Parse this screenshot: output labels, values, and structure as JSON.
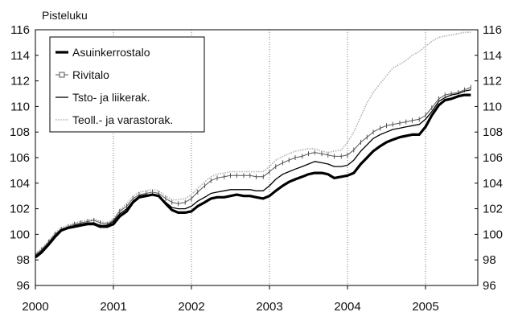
{
  "chart_data": {
    "type": "line",
    "ylabel": "Pisteluku",
    "xlabel": "",
    "ylim": [
      96,
      116
    ],
    "xlim": [
      2000.0,
      2005.67
    ],
    "yticks": [
      96,
      98,
      100,
      102,
      104,
      106,
      108,
      110,
      112,
      114,
      116
    ],
    "xticks": [
      "2000",
      "2001",
      "2002",
      "2003",
      "2004",
      "2005"
    ],
    "grid": "vertical-dotted",
    "legend_position": "top-left",
    "series": [
      {
        "name": "Asuinkerrostalo",
        "style": "thick",
        "color": "#000000",
        "points": [
          [
            2000.0,
            98.2
          ],
          [
            2000.08,
            98.6
          ],
          [
            2000.17,
            99.2
          ],
          [
            2000.25,
            99.8
          ],
          [
            2000.33,
            100.3
          ],
          [
            2000.42,
            100.5
          ],
          [
            2000.5,
            100.6
          ],
          [
            2000.58,
            100.7
          ],
          [
            2000.67,
            100.8
          ],
          [
            2000.75,
            100.8
          ],
          [
            2000.83,
            100.6
          ],
          [
            2000.92,
            100.6
          ],
          [
            2001.0,
            100.8
          ],
          [
            2001.08,
            101.4
          ],
          [
            2001.17,
            101.8
          ],
          [
            2001.25,
            102.5
          ],
          [
            2001.33,
            102.9
          ],
          [
            2001.42,
            103.0
          ],
          [
            2001.5,
            103.1
          ],
          [
            2001.58,
            103.0
          ],
          [
            2001.67,
            102.4
          ],
          [
            2001.75,
            101.9
          ],
          [
            2001.83,
            101.7
          ],
          [
            2001.92,
            101.7
          ],
          [
            2002.0,
            101.8
          ],
          [
            2002.08,
            102.2
          ],
          [
            2002.17,
            102.5
          ],
          [
            2002.25,
            102.8
          ],
          [
            2002.33,
            102.9
          ],
          [
            2002.42,
            102.9
          ],
          [
            2002.5,
            103.0
          ],
          [
            2002.58,
            103.1
          ],
          [
            2002.67,
            103.0
          ],
          [
            2002.75,
            103.0
          ],
          [
            2002.83,
            102.9
          ],
          [
            2002.92,
            102.8
          ],
          [
            2003.0,
            103.0
          ],
          [
            2003.08,
            103.4
          ],
          [
            2003.17,
            103.8
          ],
          [
            2003.25,
            104.1
          ],
          [
            2003.33,
            104.3
          ],
          [
            2003.42,
            104.5
          ],
          [
            2003.5,
            104.7
          ],
          [
            2003.58,
            104.8
          ],
          [
            2003.67,
            104.8
          ],
          [
            2003.75,
            104.7
          ],
          [
            2003.83,
            104.4
          ],
          [
            2003.92,
            104.5
          ],
          [
            2004.0,
            104.6
          ],
          [
            2004.08,
            104.8
          ],
          [
            2004.17,
            105.5
          ],
          [
            2004.25,
            106.0
          ],
          [
            2004.33,
            106.5
          ],
          [
            2004.42,
            106.9
          ],
          [
            2004.5,
            107.2
          ],
          [
            2004.58,
            107.4
          ],
          [
            2004.67,
            107.6
          ],
          [
            2004.75,
            107.7
          ],
          [
            2004.83,
            107.8
          ],
          [
            2004.92,
            107.8
          ],
          [
            2005.0,
            108.4
          ],
          [
            2005.08,
            109.3
          ],
          [
            2005.17,
            110.1
          ],
          [
            2005.25,
            110.5
          ],
          [
            2005.33,
            110.6
          ],
          [
            2005.42,
            110.8
          ],
          [
            2005.5,
            110.9
          ],
          [
            2005.58,
            110.9
          ]
        ]
      },
      {
        "name": "Rivitalo",
        "style": "marker",
        "color": "#555555",
        "points": [
          [
            2000.0,
            98.4
          ],
          [
            2000.08,
            98.8
          ],
          [
            2000.17,
            99.4
          ],
          [
            2000.25,
            100.0
          ],
          [
            2000.33,
            100.4
          ],
          [
            2000.42,
            100.6
          ],
          [
            2000.5,
            100.8
          ],
          [
            2000.58,
            100.9
          ],
          [
            2000.67,
            101.0
          ],
          [
            2000.75,
            101.1
          ],
          [
            2000.83,
            100.9
          ],
          [
            2000.92,
            100.8
          ],
          [
            2001.0,
            101.1
          ],
          [
            2001.08,
            101.8
          ],
          [
            2001.17,
            102.2
          ],
          [
            2001.25,
            102.8
          ],
          [
            2001.33,
            103.1
          ],
          [
            2001.42,
            103.2
          ],
          [
            2001.5,
            103.3
          ],
          [
            2001.58,
            103.2
          ],
          [
            2001.67,
            102.8
          ],
          [
            2001.75,
            102.5
          ],
          [
            2001.83,
            102.4
          ],
          [
            2001.92,
            102.5
          ],
          [
            2002.0,
            102.8
          ],
          [
            2002.08,
            103.3
          ],
          [
            2002.17,
            103.8
          ],
          [
            2002.25,
            104.2
          ],
          [
            2002.33,
            104.4
          ],
          [
            2002.42,
            104.5
          ],
          [
            2002.5,
            104.6
          ],
          [
            2002.58,
            104.6
          ],
          [
            2002.67,
            104.6
          ],
          [
            2002.75,
            104.6
          ],
          [
            2002.83,
            104.5
          ],
          [
            2002.92,
            104.5
          ],
          [
            2003.0,
            104.9
          ],
          [
            2003.08,
            105.3
          ],
          [
            2003.17,
            105.6
          ],
          [
            2003.25,
            105.8
          ],
          [
            2003.33,
            106.0
          ],
          [
            2003.42,
            106.1
          ],
          [
            2003.5,
            106.3
          ],
          [
            2003.58,
            106.4
          ],
          [
            2003.67,
            106.3
          ],
          [
            2003.75,
            106.2
          ],
          [
            2003.83,
            106.1
          ],
          [
            2003.92,
            106.1
          ],
          [
            2004.0,
            106.2
          ],
          [
            2004.08,
            106.6
          ],
          [
            2004.17,
            107.2
          ],
          [
            2004.25,
            107.6
          ],
          [
            2004.33,
            108.0
          ],
          [
            2004.42,
            108.3
          ],
          [
            2004.5,
            108.5
          ],
          [
            2004.58,
            108.6
          ],
          [
            2004.67,
            108.7
          ],
          [
            2004.75,
            108.8
          ],
          [
            2004.83,
            108.9
          ],
          [
            2004.92,
            109.0
          ],
          [
            2005.0,
            109.3
          ],
          [
            2005.08,
            109.9
          ],
          [
            2005.17,
            110.6
          ],
          [
            2005.25,
            110.9
          ],
          [
            2005.33,
            111.0
          ],
          [
            2005.42,
            111.1
          ],
          [
            2005.5,
            111.3
          ],
          [
            2005.58,
            111.5
          ]
        ]
      },
      {
        "name": "Tsto- ja liikerak.",
        "style": "thin",
        "color": "#000000",
        "points": [
          [
            2000.0,
            98.3
          ],
          [
            2000.08,
            98.7
          ],
          [
            2000.17,
            99.3
          ],
          [
            2000.25,
            99.9
          ],
          [
            2000.33,
            100.3
          ],
          [
            2000.42,
            100.5
          ],
          [
            2000.5,
            100.7
          ],
          [
            2000.58,
            100.8
          ],
          [
            2000.67,
            100.9
          ],
          [
            2000.75,
            100.9
          ],
          [
            2000.83,
            100.7
          ],
          [
            2000.92,
            100.7
          ],
          [
            2001.0,
            101.0
          ],
          [
            2001.08,
            101.6
          ],
          [
            2001.17,
            102.0
          ],
          [
            2001.25,
            102.6
          ],
          [
            2001.33,
            103.0
          ],
          [
            2001.42,
            103.1
          ],
          [
            2001.5,
            103.1
          ],
          [
            2001.58,
            103.0
          ],
          [
            2001.67,
            102.5
          ],
          [
            2001.75,
            102.1
          ],
          [
            2001.83,
            102.0
          ],
          [
            2001.92,
            102.0
          ],
          [
            2002.0,
            102.2
          ],
          [
            2002.08,
            102.6
          ],
          [
            2002.17,
            102.9
          ],
          [
            2002.25,
            103.2
          ],
          [
            2002.33,
            103.3
          ],
          [
            2002.42,
            103.4
          ],
          [
            2002.5,
            103.5
          ],
          [
            2002.58,
            103.5
          ],
          [
            2002.67,
            103.5
          ],
          [
            2002.75,
            103.5
          ],
          [
            2002.83,
            103.4
          ],
          [
            2002.92,
            103.4
          ],
          [
            2003.0,
            103.8
          ],
          [
            2003.08,
            104.3
          ],
          [
            2003.17,
            104.7
          ],
          [
            2003.25,
            104.9
          ],
          [
            2003.33,
            105.1
          ],
          [
            2003.42,
            105.3
          ],
          [
            2003.5,
            105.5
          ],
          [
            2003.58,
            105.7
          ],
          [
            2003.67,
            105.6
          ],
          [
            2003.75,
            105.5
          ],
          [
            2003.83,
            105.3
          ],
          [
            2003.92,
            105.3
          ],
          [
            2004.0,
            105.4
          ],
          [
            2004.08,
            105.8
          ],
          [
            2004.17,
            106.5
          ],
          [
            2004.25,
            107.0
          ],
          [
            2004.33,
            107.5
          ],
          [
            2004.42,
            107.8
          ],
          [
            2004.5,
            108.0
          ],
          [
            2004.58,
            108.2
          ],
          [
            2004.67,
            108.3
          ],
          [
            2004.75,
            108.4
          ],
          [
            2004.83,
            108.5
          ],
          [
            2004.92,
            108.6
          ],
          [
            2005.0,
            109.0
          ],
          [
            2005.08,
            109.6
          ],
          [
            2005.17,
            110.4
          ],
          [
            2005.25,
            110.7
          ],
          [
            2005.33,
            110.9
          ],
          [
            2005.42,
            111.0
          ],
          [
            2005.5,
            111.2
          ],
          [
            2005.58,
            111.3
          ]
        ]
      },
      {
        "name": "Teoll.- ja varastorak.",
        "style": "dotted",
        "color": "#aaaaaa",
        "points": [
          [
            2000.0,
            98.5
          ],
          [
            2000.08,
            98.9
          ],
          [
            2000.17,
            99.5
          ],
          [
            2000.25,
            100.1
          ],
          [
            2000.33,
            100.5
          ],
          [
            2000.42,
            100.7
          ],
          [
            2000.5,
            100.9
          ],
          [
            2000.58,
            101.0
          ],
          [
            2000.67,
            101.1
          ],
          [
            2000.75,
            101.2
          ],
          [
            2000.83,
            101.0
          ],
          [
            2000.92,
            100.9
          ],
          [
            2001.0,
            101.2
          ],
          [
            2001.08,
            101.9
          ],
          [
            2001.17,
            102.4
          ],
          [
            2001.25,
            103.0
          ],
          [
            2001.33,
            103.3
          ],
          [
            2001.42,
            103.4
          ],
          [
            2001.5,
            103.5
          ],
          [
            2001.58,
            103.4
          ],
          [
            2001.67,
            103.0
          ],
          [
            2001.75,
            102.7
          ],
          [
            2001.83,
            102.7
          ],
          [
            2001.92,
            102.8
          ],
          [
            2002.0,
            103.1
          ],
          [
            2002.08,
            103.6
          ],
          [
            2002.17,
            104.1
          ],
          [
            2002.25,
            104.5
          ],
          [
            2002.33,
            104.7
          ],
          [
            2002.42,
            104.8
          ],
          [
            2002.5,
            104.9
          ],
          [
            2002.58,
            104.9
          ],
          [
            2002.67,
            104.9
          ],
          [
            2002.75,
            104.9
          ],
          [
            2002.83,
            104.9
          ],
          [
            2002.92,
            104.9
          ],
          [
            2003.0,
            105.3
          ],
          [
            2003.08,
            105.8
          ],
          [
            2003.17,
            106.1
          ],
          [
            2003.25,
            106.3
          ],
          [
            2003.33,
            106.5
          ],
          [
            2003.42,
            106.6
          ],
          [
            2003.5,
            106.7
          ],
          [
            2003.58,
            106.7
          ],
          [
            2003.67,
            106.5
          ],
          [
            2003.75,
            106.4
          ],
          [
            2003.83,
            106.5
          ],
          [
            2003.92,
            106.6
          ],
          [
            2004.0,
            107.2
          ],
          [
            2004.08,
            108.0
          ],
          [
            2004.17,
            109.2
          ],
          [
            2004.25,
            110.3
          ],
          [
            2004.33,
            111.1
          ],
          [
            2004.42,
            111.8
          ],
          [
            2004.5,
            112.4
          ],
          [
            2004.58,
            113.0
          ],
          [
            2004.67,
            113.3
          ],
          [
            2004.75,
            113.6
          ],
          [
            2004.83,
            114.0
          ],
          [
            2004.92,
            114.3
          ],
          [
            2005.0,
            114.7
          ],
          [
            2005.08,
            115.1
          ],
          [
            2005.17,
            115.4
          ],
          [
            2005.25,
            115.5
          ],
          [
            2005.33,
            115.6
          ],
          [
            2005.42,
            115.7
          ],
          [
            2005.5,
            115.8
          ],
          [
            2005.58,
            115.8
          ]
        ]
      }
    ]
  }
}
